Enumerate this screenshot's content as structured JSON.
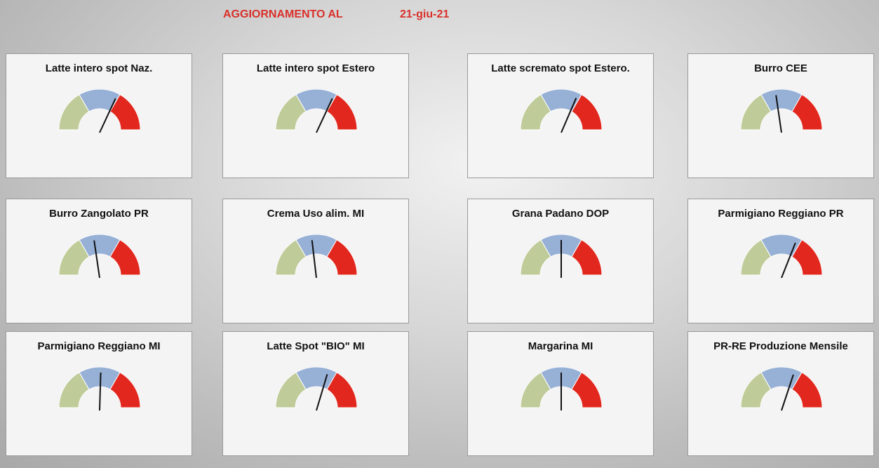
{
  "header": {
    "label": "AGGIORNAMENTO AL",
    "date": "21-giu-21"
  },
  "colors": [
    "#bfcb98",
    "#97b0d6",
    "#e2281e"
  ],
  "cards": [
    {
      "title": "Latte intero spot Naz.",
      "needle": 65
    },
    {
      "title": "Latte intero spot Estero",
      "needle": 65
    },
    {
      "title": "Latte scremato spot Estero.",
      "needle": 64
    },
    {
      "title": "Burro CEE",
      "needle": 45
    },
    {
      "title": "Burro Zangolato PR",
      "needle": 45
    },
    {
      "title": "Crema Uso alim. MI",
      "needle": 46
    },
    {
      "title": "Grana Padano DOP",
      "needle": 50
    },
    {
      "title": "Parmigiano Reggiano PR",
      "needle": 63
    },
    {
      "title": "Parmigiano Reggiano MI",
      "needle": 51
    },
    {
      "title": "Latte Spot \"BIO\" MI",
      "needle": 60
    },
    {
      "title": "Margarina MI",
      "needle": 50
    },
    {
      "title": "PR-RE Produzione Mensile",
      "needle": 61
    }
  ]
}
